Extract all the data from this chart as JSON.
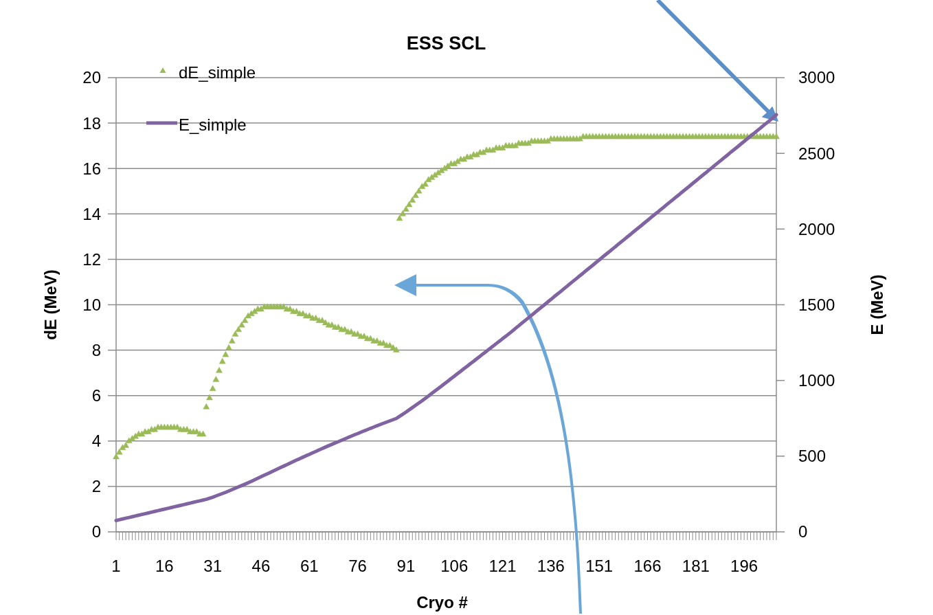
{
  "chart_data": {
    "type": "line",
    "title": "ESS SCL",
    "xlabel": "Cryo #",
    "ylabel": "dE (MeV)",
    "y2label": "E (MeV)",
    "categories": [
      "1",
      null,
      null,
      null,
      null,
      null,
      null,
      null,
      null,
      null,
      null,
      null,
      null,
      null,
      null,
      "16",
      null,
      null,
      null,
      null,
      null,
      null,
      null,
      null,
      null,
      null,
      null,
      null,
      null,
      null,
      "31",
      null,
      null,
      null,
      null,
      null,
      null,
      null,
      null,
      null,
      null,
      null,
      null,
      null,
      null,
      "46",
      null,
      null,
      null,
      null,
      null,
      null,
      null,
      null,
      null,
      null,
      null,
      null,
      null,
      null,
      "61",
      null,
      null,
      null,
      null,
      null,
      null,
      null,
      null,
      null,
      null,
      null,
      null,
      null,
      null,
      "76",
      null,
      null,
      null,
      null,
      null,
      null,
      null,
      null,
      null,
      null,
      null,
      null,
      null,
      null,
      "91",
      null,
      null,
      null,
      null,
      null,
      null,
      null,
      null,
      null,
      null,
      null,
      null,
      null,
      null,
      "106",
      null,
      null,
      null,
      null,
      null,
      null,
      null,
      null,
      null,
      null,
      null,
      null,
      null,
      null,
      "121",
      null,
      null,
      null,
      null,
      null,
      null,
      null,
      null,
      null,
      null,
      null,
      null,
      null,
      null,
      "136",
      null,
      null,
      null,
      null,
      null,
      null,
      null,
      null,
      null,
      null,
      null,
      null,
      null,
      null,
      "151",
      null,
      null,
      null,
      null,
      null,
      null,
      null,
      null,
      null,
      null,
      null,
      null,
      null,
      null,
      "166",
      null,
      null,
      null,
      null,
      null,
      null,
      null,
      null,
      null,
      null,
      null,
      null,
      null,
      null,
      "181",
      null,
      null,
      null,
      null,
      null,
      null,
      null,
      null,
      null,
      null,
      null,
      null,
      null,
      null,
      "196",
      null,
      null,
      null,
      null,
      null,
      null,
      null,
      null,
      null,
      null
    ],
    "series": [
      {
        "name": "dE_simple",
        "type": "scatter",
        "marker": "triangle",
        "color": "#9bbb59",
        "values": [
          3.3,
          3.5,
          3.7,
          3.8,
          4.0,
          4.1,
          4.2,
          4.3,
          4.3,
          4.4,
          4.4,
          4.5,
          4.5,
          4.6,
          4.6,
          4.6,
          4.6,
          4.6,
          4.6,
          4.6,
          4.5,
          4.5,
          4.5,
          4.4,
          4.4,
          4.4,
          4.3,
          4.3,
          5.5,
          5.9,
          6.3,
          6.7,
          7.1,
          7.5,
          7.8,
          8.1,
          8.4,
          8.7,
          8.9,
          9.1,
          9.3,
          9.5,
          9.6,
          9.7,
          9.8,
          9.8,
          9.9,
          9.9,
          9.9,
          9.9,
          9.9,
          9.9,
          9.9,
          9.8,
          9.8,
          9.7,
          9.7,
          9.6,
          9.6,
          9.5,
          9.5,
          9.4,
          9.4,
          9.3,
          9.3,
          9.2,
          9.1,
          9.1,
          9.0,
          9.0,
          8.9,
          8.9,
          8.8,
          8.8,
          8.7,
          8.7,
          8.6,
          8.6,
          8.5,
          8.5,
          8.4,
          8.4,
          8.3,
          8.3,
          8.2,
          8.2,
          8.1,
          8.0,
          13.8,
          14.0,
          14.2,
          14.4,
          14.6,
          14.8,
          15.0,
          15.2,
          15.3,
          15.5,
          15.6,
          15.7,
          15.8,
          15.9,
          16.0,
          16.1,
          16.2,
          16.2,
          16.3,
          16.4,
          16.4,
          16.5,
          16.5,
          16.6,
          16.6,
          16.7,
          16.7,
          16.8,
          16.8,
          16.8,
          16.9,
          16.9,
          16.9,
          17.0,
          17.0,
          17.0,
          17.0,
          17.1,
          17.1,
          17.1,
          17.1,
          17.2,
          17.2,
          17.2,
          17.2,
          17.2,
          17.2,
          17.3,
          17.3,
          17.3,
          17.3,
          17.3,
          17.3,
          17.3,
          17.3,
          17.3,
          17.3,
          17.4,
          17.4,
          17.4,
          17.4,
          17.4,
          17.4,
          17.4,
          17.4,
          17.4,
          17.4,
          17.4,
          17.4,
          17.4,
          17.4,
          17.4,
          17.4,
          17.4,
          17.4,
          17.4,
          17.4,
          17.4,
          17.4,
          17.4,
          17.4,
          17.4,
          17.4,
          17.4,
          17.4,
          17.4,
          17.4,
          17.4,
          17.4,
          17.4,
          17.4,
          17.4,
          17.4,
          17.4,
          17.4,
          17.4,
          17.4,
          17.4,
          17.4,
          17.4,
          17.4,
          17.4,
          17.4,
          17.4,
          17.4,
          17.4,
          17.4,
          17.4,
          17.4,
          17.4,
          17.4,
          17.4,
          17.4,
          17.4,
          17.4,
          17.4,
          17.4,
          17.4
        ]
      },
      {
        "name": "E_simple",
        "axis": "y2",
        "marker": "none",
        "color": "#8064a2",
        "values": [
          75,
          80,
          85,
          90,
          95,
          100,
          105,
          110,
          115,
          120,
          125,
          130,
          135,
          140,
          145,
          150,
          155,
          160,
          165,
          170,
          175,
          180,
          185,
          190,
          195,
          200,
          205,
          210,
          215,
          222,
          229,
          237,
          245,
          253,
          261,
          270,
          279,
          288,
          297,
          306,
          315,
          324,
          334,
          344,
          354,
          364,
          374,
          384,
          394,
          404,
          414,
          424,
          434,
          444,
          454,
          464,
          474,
          483,
          493,
          503,
          512,
          522,
          531,
          541,
          550,
          560,
          569,
          578,
          587,
          596,
          605,
          614,
          623,
          632,
          641,
          649,
          658,
          667,
          675,
          684,
          692,
          701,
          709,
          717,
          725,
          733,
          741,
          749,
          763,
          777,
          791,
          806,
          821,
          836,
          851,
          866,
          882,
          898,
          914,
          930,
          946,
          962,
          979,
          995,
          1012,
          1028,
          1045,
          1061,
          1078,
          1094,
          1111,
          1127,
          1144,
          1160,
          1177,
          1193,
          1210,
          1226,
          1243,
          1259,
          1276,
          1292,
          1309,
          1326,
          1344,
          1361,
          1379,
          1396,
          1413,
          1431,
          1448,
          1466,
          1483,
          1500,
          1518,
          1535,
          1553,
          1570,
          1587,
          1605,
          1622,
          1640,
          1657,
          1674,
          1692,
          1709,
          1727,
          1744,
          1761,
          1779,
          1796,
          1814,
          1831,
          1848,
          1866,
          1883,
          1901,
          1918,
          1935,
          1953,
          1970,
          1988,
          2005,
          2022,
          2040,
          2057,
          2075,
          2092,
          2109,
          2127,
          2144,
          2162,
          2179,
          2196,
          2214,
          2231,
          2249,
          2266,
          2283,
          2301,
          2318,
          2336,
          2353,
          2370,
          2388,
          2405,
          2423,
          2440,
          2457,
          2475,
          2492,
          2510,
          2527,
          2544,
          2562,
          2579,
          2597,
          2614,
          2631,
          2649,
          2666,
          2684,
          2701,
          2718,
          2736,
          2755
        ]
      }
    ],
    "ylim": [
      0,
      20
    ],
    "yticks": [
      0,
      2,
      4,
      6,
      8,
      10,
      12,
      14,
      16,
      18,
      20
    ],
    "y2lim": [
      0,
      3000
    ],
    "y2ticks": [
      0,
      500,
      1000,
      1500,
      2000,
      2500,
      3000
    ],
    "grid": "y",
    "legend": "top left"
  }
}
